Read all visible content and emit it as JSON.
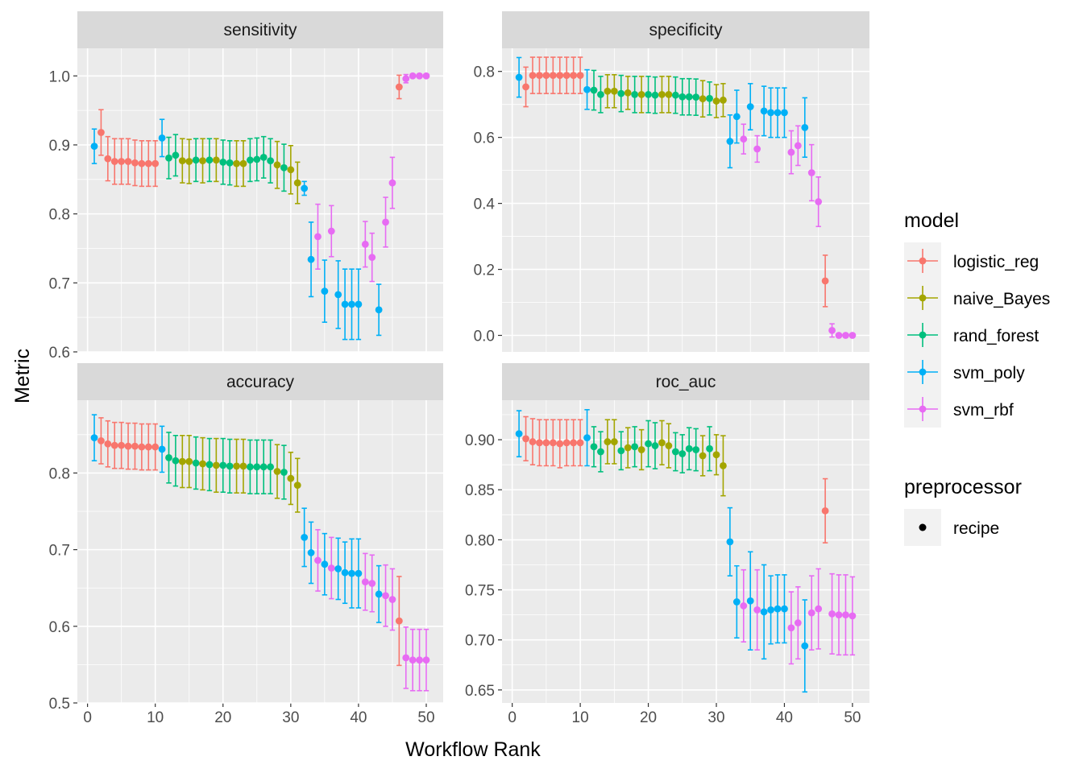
{
  "chart_data": {
    "type": "scatter",
    "xlabel": "Workflow Rank",
    "ylabel": "Metric",
    "grid": true,
    "legend_position": "right",
    "legend": {
      "title": "model",
      "items": [
        {
          "name": "logistic_reg",
          "color": "#F8766D"
        },
        {
          "name": "naive_Bayes",
          "color": "#A3A500"
        },
        {
          "name": "rand_forest",
          "color": "#00BF7D"
        },
        {
          "name": "svm_poly",
          "color": "#00B0F6"
        },
        {
          "name": "svm_rbf",
          "color": "#E76BF3"
        }
      ],
      "shape_title": "preprocessor",
      "shape_items": [
        {
          "name": "recipe"
        }
      ]
    },
    "models": [
      "logistic_reg",
      "naive_Bayes",
      "rand_forest",
      "svm_poly",
      "svm_rbf"
    ],
    "colors": {
      "logistic_reg": "#F8766D",
      "naive_Bayes": "#A3A500",
      "rand_forest": "#00BF7D",
      "svm_poly": "#00B0F6",
      "svm_rbf": "#E76BF3"
    },
    "x_ticks": [
      0,
      10,
      20,
      30,
      40,
      50
    ],
    "xlim": [
      -1.5,
      52.5
    ],
    "rank_models": [
      "svm_poly",
      "logistic_reg",
      "logistic_reg",
      "logistic_reg",
      "logistic_reg",
      "logistic_reg",
      "logistic_reg",
      "logistic_reg",
      "logistic_reg",
      "logistic_reg",
      "svm_poly",
      "rand_forest",
      "rand_forest",
      "naive_Bayes",
      "naive_Bayes",
      "rand_forest",
      "naive_Bayes",
      "rand_forest",
      "naive_Bayes",
      "rand_forest",
      "rand_forest",
      "naive_Bayes",
      "naive_Bayes",
      "rand_forest",
      "rand_forest",
      "rand_forest",
      "rand_forest",
      "naive_Bayes",
      "rand_forest",
      "naive_Bayes",
      "naive_Bayes",
      "svm_poly",
      "svm_poly",
      "svm_rbf",
      "svm_poly",
      "svm_rbf",
      "svm_poly",
      "svm_poly",
      "svm_poly",
      "svm_poly",
      "svm_rbf",
      "svm_rbf",
      "svm_poly",
      "svm_rbf",
      "svm_rbf",
      "logistic_reg",
      "svm_rbf",
      "svm_rbf",
      "svm_rbf",
      "svm_rbf"
    ],
    "panels": [
      {
        "metric": "sensitivity",
        "ylim": [
          0.6,
          1.04
        ],
        "y_ticks": [
          0.6,
          0.7,
          0.8,
          0.9,
          1.0
        ],
        "y_tick_labels": [
          "0.6",
          "0.7",
          "0.8",
          "0.9",
          "1.0"
        ],
        "mean": [
          0.898,
          0.918,
          0.88,
          0.876,
          0.876,
          0.876,
          0.874,
          0.873,
          0.873,
          0.873,
          0.91,
          0.881,
          0.885,
          0.877,
          0.876,
          0.878,
          0.877,
          0.878,
          0.878,
          0.875,
          0.874,
          0.873,
          0.873,
          0.878,
          0.879,
          0.882,
          0.877,
          0.871,
          0.867,
          0.864,
          0.845,
          0.837,
          0.734,
          0.767,
          0.688,
          0.775,
          0.683,
          0.669,
          0.669,
          0.669,
          0.756,
          0.737,
          0.661,
          0.788,
          0.845,
          0.984,
          0.996,
          1.0,
          1.0,
          1.0
        ],
        "err": [
          0.025,
          0.033,
          0.032,
          0.033,
          0.033,
          0.033,
          0.033,
          0.033,
          0.033,
          0.033,
          0.027,
          0.03,
          0.03,
          0.032,
          0.032,
          0.031,
          0.032,
          0.031,
          0.031,
          0.032,
          0.032,
          0.033,
          0.033,
          0.031,
          0.031,
          0.03,
          0.032,
          0.034,
          0.034,
          0.035,
          0.03,
          0.01,
          0.054,
          0.047,
          0.045,
          0.037,
          0.049,
          0.051,
          0.051,
          0.051,
          0.033,
          0.035,
          0.037,
          0.036,
          0.037,
          0.017,
          0.006,
          0.0,
          0.0,
          0.0
        ]
      },
      {
        "metric": "specificity",
        "ylim": [
          -0.05,
          0.87
        ],
        "y_ticks": [
          0.0,
          0.2,
          0.4,
          0.6,
          0.8
        ],
        "y_tick_labels": [
          "0.0",
          "0.2",
          "0.4",
          "0.6",
          "0.8"
        ],
        "mean": [
          0.782,
          0.753,
          0.788,
          0.788,
          0.788,
          0.788,
          0.788,
          0.788,
          0.788,
          0.788,
          0.745,
          0.743,
          0.73,
          0.74,
          0.74,
          0.733,
          0.735,
          0.73,
          0.73,
          0.73,
          0.728,
          0.73,
          0.73,
          0.728,
          0.723,
          0.723,
          0.722,
          0.717,
          0.718,
          0.71,
          0.713,
          0.588,
          0.663,
          0.595,
          0.693,
          0.565,
          0.68,
          0.675,
          0.675,
          0.675,
          0.555,
          0.575,
          0.63,
          0.493,
          0.405,
          0.165,
          0.015,
          0.0,
          0.0,
          0.0
        ],
        "err": [
          0.06,
          0.06,
          0.055,
          0.055,
          0.055,
          0.055,
          0.055,
          0.055,
          0.055,
          0.055,
          0.06,
          0.06,
          0.055,
          0.05,
          0.05,
          0.055,
          0.05,
          0.055,
          0.055,
          0.055,
          0.055,
          0.055,
          0.055,
          0.055,
          0.055,
          0.055,
          0.055,
          0.055,
          0.05,
          0.05,
          0.05,
          0.08,
          0.08,
          0.045,
          0.07,
          0.04,
          0.075,
          0.075,
          0.075,
          0.075,
          0.065,
          0.06,
          0.09,
          0.085,
          0.075,
          0.078,
          0.02,
          0.0,
          0.0,
          0.0
        ]
      },
      {
        "metric": "accuracy",
        "ylim": [
          0.5,
          0.895
        ],
        "y_ticks": [
          0.5,
          0.6,
          0.7,
          0.8
        ],
        "y_tick_labels": [
          "0.5",
          "0.6",
          "0.7",
          "0.8"
        ],
        "mean": [
          0.846,
          0.842,
          0.838,
          0.836,
          0.836,
          0.835,
          0.835,
          0.834,
          0.834,
          0.834,
          0.831,
          0.82,
          0.816,
          0.815,
          0.815,
          0.813,
          0.812,
          0.811,
          0.81,
          0.81,
          0.809,
          0.809,
          0.809,
          0.808,
          0.808,
          0.808,
          0.808,
          0.802,
          0.801,
          0.793,
          0.784,
          0.716,
          0.696,
          0.686,
          0.681,
          0.676,
          0.675,
          0.67,
          0.669,
          0.669,
          0.658,
          0.656,
          0.642,
          0.64,
          0.635,
          0.607,
          0.559,
          0.556,
          0.556,
          0.556
        ],
        "err": [
          0.03,
          0.03,
          0.03,
          0.03,
          0.03,
          0.03,
          0.03,
          0.03,
          0.03,
          0.03,
          0.03,
          0.033,
          0.033,
          0.034,
          0.034,
          0.034,
          0.034,
          0.034,
          0.035,
          0.035,
          0.035,
          0.035,
          0.035,
          0.035,
          0.035,
          0.035,
          0.035,
          0.035,
          0.035,
          0.034,
          0.035,
          0.038,
          0.04,
          0.04,
          0.04,
          0.04,
          0.04,
          0.04,
          0.045,
          0.045,
          0.037,
          0.037,
          0.037,
          0.04,
          0.04,
          0.058,
          0.04,
          0.04,
          0.04,
          0.04
        ]
      },
      {
        "metric": "roc_auc",
        "ylim": [
          0.637,
          0.9395
        ],
        "y_ticks": [
          0.65,
          0.7,
          0.75,
          0.8,
          0.85,
          0.9
        ],
        "y_tick_labels": [
          "0.65",
          "0.70",
          "0.75",
          "0.80",
          "0.85",
          "0.90"
        ],
        "mean": [
          0.906,
          0.901,
          0.898,
          0.897,
          0.897,
          0.897,
          0.896,
          0.897,
          0.897,
          0.897,
          0.902,
          0.893,
          0.888,
          0.898,
          0.898,
          0.889,
          0.892,
          0.893,
          0.89,
          0.896,
          0.894,
          0.897,
          0.894,
          0.888,
          0.886,
          0.891,
          0.89,
          0.884,
          0.891,
          0.885,
          0.874,
          0.798,
          0.738,
          0.734,
          0.739,
          0.73,
          0.728,
          0.73,
          0.731,
          0.731,
          0.712,
          0.717,
          0.694,
          0.727,
          0.731,
          0.829,
          0.726,
          0.725,
          0.725,
          0.724
        ],
        "err": [
          0.023,
          0.022,
          0.023,
          0.023,
          0.023,
          0.023,
          0.024,
          0.023,
          0.023,
          0.023,
          0.028,
          0.02,
          0.02,
          0.022,
          0.022,
          0.019,
          0.02,
          0.02,
          0.02,
          0.023,
          0.023,
          0.022,
          0.022,
          0.019,
          0.019,
          0.021,
          0.021,
          0.02,
          0.022,
          0.02,
          0.03,
          0.034,
          0.036,
          0.036,
          0.049,
          0.04,
          0.047,
          0.034,
          0.034,
          0.034,
          0.036,
          0.036,
          0.046,
          0.037,
          0.04,
          0.032,
          0.04,
          0.04,
          0.04,
          0.039
        ]
      }
    ]
  }
}
